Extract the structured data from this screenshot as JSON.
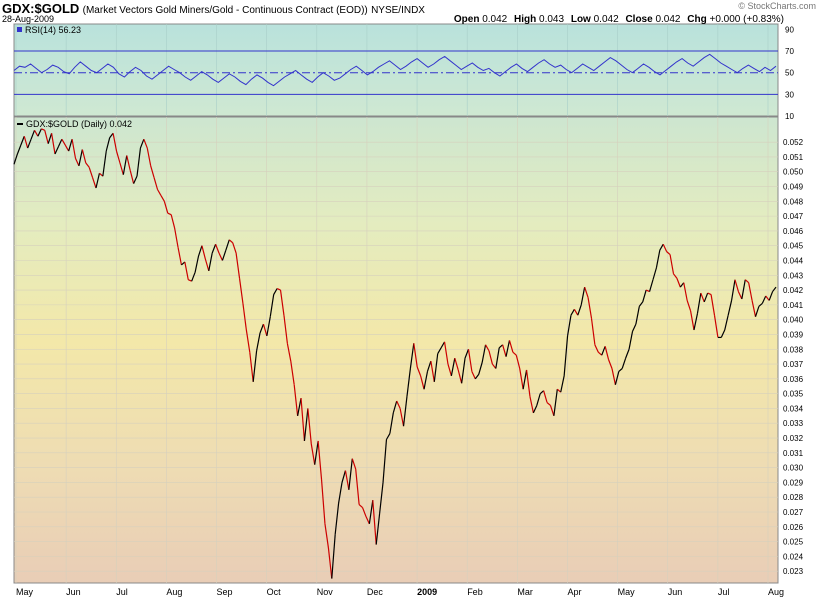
{
  "header": {
    "symbol": "GDX:$GOLD",
    "description": "(Market Vectors Gold Miners/Gold - Continuous Contract (EOD))",
    "exchange": "NYSE/INDX",
    "date": "28-Aug-2009",
    "brand": "© StockCharts.com",
    "open_label": "Open",
    "open": "0.042",
    "high_label": "High",
    "high": "0.043",
    "low_label": "Low",
    "low": "0.042",
    "close_label": "Close",
    "close": "0.042",
    "chg_label": "Chg",
    "chg": "+0.000 (+0.83%)"
  },
  "colors": {
    "rsi_line": "#3333cc",
    "price_up": "#000000",
    "price_down": "#cc0000",
    "panel_top": "#bfe3de",
    "panel_mid": "#f3e8a8",
    "panel_bottom": "#ebcfb4"
  },
  "chart_data": [
    {
      "type": "line",
      "title": "RSI(14) 56.23",
      "ylim": [
        10,
        95
      ],
      "yticks": [
        90,
        70,
        50,
        30,
        10
      ],
      "reference_lines": [
        70,
        50,
        30
      ],
      "series": [
        {
          "name": "RSI(14)",
          "values": [
            52,
            56,
            55,
            58,
            54,
            50,
            53,
            57,
            55,
            51,
            49,
            55,
            60,
            56,
            52,
            50,
            54,
            58,
            55,
            49,
            46,
            51,
            55,
            52,
            47,
            44,
            48,
            52,
            56,
            53,
            50,
            46,
            43,
            47,
            51,
            48,
            44,
            41,
            45,
            49,
            46,
            42,
            39,
            44,
            48,
            45,
            41,
            38,
            42,
            46,
            49,
            52,
            48,
            44,
            41,
            46,
            50,
            47,
            43,
            45,
            49,
            53,
            56,
            52,
            48,
            51,
            55,
            58,
            61,
            57,
            53,
            56,
            60,
            63,
            59,
            55,
            58,
            62,
            65,
            61,
            57,
            53,
            56,
            59,
            55,
            52,
            54,
            50,
            47,
            51,
            55,
            58,
            54,
            51,
            55,
            59,
            62,
            58,
            55,
            57,
            53,
            50,
            54,
            58,
            55,
            52,
            56,
            60,
            64,
            61,
            57,
            53,
            50,
            54,
            58,
            55,
            51,
            48,
            52,
            56,
            60,
            63,
            59,
            56,
            60,
            64,
            67,
            63,
            59,
            56,
            53,
            50,
            54,
            57,
            54,
            51,
            55,
            52,
            56
          ],
          "last": 56.23
        }
      ]
    },
    {
      "type": "line",
      "title": "GDX:$GOLD (Daily) 0.042",
      "ylim": [
        0.0222,
        0.0537
      ],
      "yticks": [
        "0.052",
        "0.051",
        "0.050",
        "0.049",
        "0.048",
        "0.047",
        "0.046",
        "0.045",
        "0.044",
        "0.043",
        "0.042",
        "0.041",
        "0.040",
        "0.039",
        "0.038",
        "0.037",
        "0.036",
        "0.035",
        "0.034",
        "0.033",
        "0.032",
        "0.031",
        "0.030",
        "0.029",
        "0.028",
        "0.027",
        "0.026",
        "0.025",
        "0.024",
        "0.023"
      ],
      "x_labels": [
        "May",
        "Jun",
        "Jul",
        "Aug",
        "Sep",
        "Oct",
        "Nov",
        "Dec",
        "2009",
        "Feb",
        "Mar",
        "Apr",
        "May",
        "Jun",
        "Jul",
        "Aug"
      ],
      "series": [
        {
          "name": "GDX:$GOLD",
          "values": [
            0.0505,
            0.0512,
            0.0518,
            0.0524,
            0.0516,
            0.0522,
            0.0528,
            0.0524,
            0.0529,
            0.0528,
            0.0519,
            0.0526,
            0.0512,
            0.0517,
            0.0522,
            0.0518,
            0.0514,
            0.0522,
            0.0509,
            0.0504,
            0.0515,
            0.0506,
            0.0503,
            0.0496,
            0.0489,
            0.0499,
            0.0497,
            0.0514,
            0.0523,
            0.0526,
            0.0514,
            0.0506,
            0.0498,
            0.0511,
            0.0501,
            0.0492,
            0.0497,
            0.0516,
            0.0522,
            0.0516,
            0.0504,
            0.0496,
            0.0488,
            0.0484,
            0.048,
            0.0472,
            0.0471,
            0.0462,
            0.0449,
            0.0437,
            0.0439,
            0.0427,
            0.0426,
            0.0432,
            0.0443,
            0.045,
            0.0441,
            0.0433,
            0.0445,
            0.0451,
            0.0445,
            0.044,
            0.0447,
            0.0454,
            0.0452,
            0.0445,
            0.0428,
            0.0411,
            0.0393,
            0.0378,
            0.0358,
            0.0379,
            0.0391,
            0.0397,
            0.0389,
            0.0402,
            0.0417,
            0.0421,
            0.042,
            0.0403,
            0.0384,
            0.0372,
            0.0356,
            0.0335,
            0.0347,
            0.0318,
            0.034,
            0.0316,
            0.0302,
            0.0318,
            0.0292,
            0.0262,
            0.0246,
            0.0225,
            0.0255,
            0.0276,
            0.029,
            0.0298,
            0.0285,
            0.0306,
            0.0299,
            0.0275,
            0.0273,
            0.0267,
            0.0262,
            0.0278,
            0.0248,
            0.0269,
            0.029,
            0.0319,
            0.0323,
            0.0337,
            0.0345,
            0.034,
            0.0328,
            0.0348,
            0.0367,
            0.0384,
            0.0368,
            0.0362,
            0.0353,
            0.0365,
            0.0372,
            0.0358,
            0.0377,
            0.0381,
            0.0385,
            0.037,
            0.0362,
            0.0374,
            0.0366,
            0.0357,
            0.0374,
            0.038,
            0.0365,
            0.036,
            0.0363,
            0.0371,
            0.0383,
            0.0379,
            0.037,
            0.0367,
            0.0381,
            0.0383,
            0.0375,
            0.0386,
            0.0378,
            0.0376,
            0.0367,
            0.0353,
            0.0366,
            0.0348,
            0.0337,
            0.0342,
            0.035,
            0.0352,
            0.0344,
            0.0342,
            0.0335,
            0.0353,
            0.0351,
            0.0362,
            0.0389,
            0.0403,
            0.0407,
            0.0403,
            0.041,
            0.0422,
            0.0415,
            0.0401,
            0.0383,
            0.0378,
            0.0376,
            0.0382,
            0.0373,
            0.0367,
            0.0356,
            0.0365,
            0.0367,
            0.0374,
            0.038,
            0.0392,
            0.0397,
            0.0409,
            0.0412,
            0.042,
            0.0419,
            0.0427,
            0.0435,
            0.0447,
            0.0451,
            0.0446,
            0.0444,
            0.0431,
            0.0428,
            0.0422,
            0.0425,
            0.0413,
            0.0406,
            0.0393,
            0.0404,
            0.0418,
            0.0412,
            0.0418,
            0.0417,
            0.0403,
            0.0388,
            0.0388,
            0.0393,
            0.0403,
            0.0413,
            0.0427,
            0.0419,
            0.0414,
            0.0427,
            0.0425,
            0.0413,
            0.0402,
            0.0409,
            0.0411,
            0.0416,
            0.0413,
            0.0419,
            0.0422
          ]
        }
      ]
    }
  ]
}
